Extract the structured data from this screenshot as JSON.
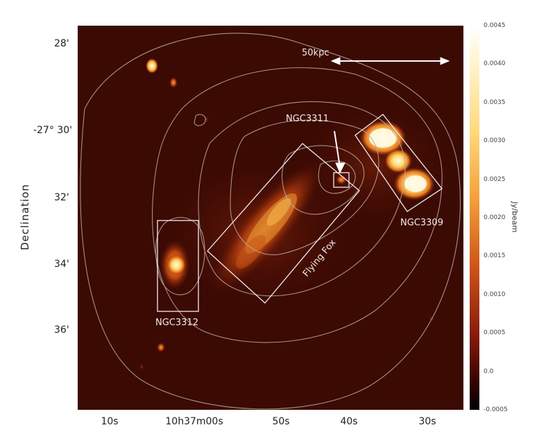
{
  "axes": {
    "ylabel": "Declination",
    "dec_ticks": [
      "28'",
      "-27° 30'",
      "32'",
      "34'",
      "36'"
    ],
    "ra_ticks": [
      "10s",
      "10h37m00s",
      "50s",
      "40s",
      "30s"
    ]
  },
  "colorbar": {
    "label": "Jy/beam",
    "ticks": [
      "0.0045",
      "0.0040",
      "0.0035",
      "0.0030",
      "0.0025",
      "0.0020",
      "0.0015",
      "0.0010",
      "0.0005",
      "0.0",
      "-0.0005"
    ],
    "colormap": "afmhot",
    "colors": {
      "low": "#000000",
      "mid": "#8a1d0c",
      "high": "#fff8e0"
    }
  },
  "annotations": {
    "scale_bar": "50kpc",
    "ngc3311": "NGC3311",
    "ngc3309": "NGC3309",
    "ngc3312": "NGC3312",
    "flying_fox": "Flying Fox"
  },
  "colors": {
    "background": "#3b0a03",
    "contour": "#b9aaa4",
    "box": "#f2efee"
  }
}
